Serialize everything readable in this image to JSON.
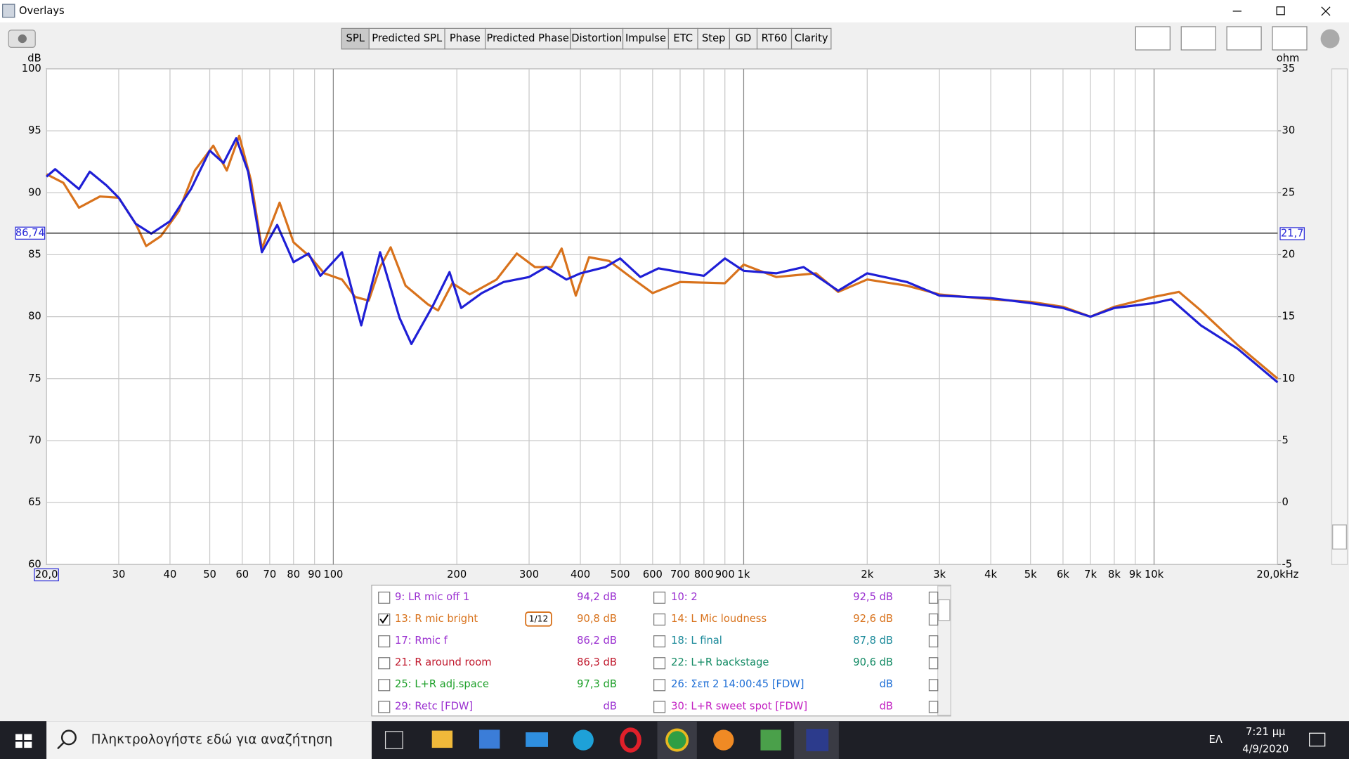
{
  "window": {
    "title": "Overlays"
  },
  "tabs": [
    "SPL",
    "Predicted SPL",
    "Phase",
    "Predicted Phase",
    "Distortion",
    "Impulse",
    "ETC",
    "Step",
    "GD",
    "RT60",
    "Clarity"
  ],
  "active_tab": 0,
  "chart_data": {
    "type": "line",
    "y_label": "dB",
    "y2_label": "ohm",
    "xlog": true,
    "grid": true,
    "xlim": [
      20,
      20000
    ],
    "xticks": [
      {
        "value": 20,
        "label": "20,0"
      },
      30,
      40,
      50,
      60,
      70,
      80,
      90,
      100,
      200,
      300,
      400,
      500,
      600,
      700,
      800,
      900,
      {
        "value": 1000,
        "label": "1k"
      },
      {
        "value": 2000,
        "label": "2k"
      },
      {
        "value": 3000,
        "label": "3k"
      },
      {
        "value": 4000,
        "label": "4k"
      },
      {
        "value": 5000,
        "label": "5k"
      },
      {
        "value": 6000,
        "label": "6k"
      },
      {
        "value": 7000,
        "label": "7k"
      },
      {
        "value": 8000,
        "label": "8k"
      },
      {
        "value": 9000,
        "label": "9k"
      },
      {
        "value": 10000,
        "label": "10k"
      },
      {
        "value": 20000,
        "label": "20,0kHz"
      }
    ],
    "ylim": [
      60,
      100
    ],
    "yticks": [
      60,
      65,
      70,
      75,
      80,
      85,
      90,
      95,
      100
    ],
    "y2lim": [
      -5,
      35
    ],
    "y2ticks": [
      -5,
      0,
      5,
      10,
      15,
      20,
      25,
      30,
      35
    ],
    "cursor": {
      "value": 86.74,
      "label": "86,74"
    },
    "cursor_y2": {
      "value": 21.7,
      "label": "21,7"
    },
    "series": [
      {
        "color": "#d8721c",
        "x": [
          20,
          22,
          24,
          27,
          30,
          33,
          35,
          38,
          42,
          46,
          51,
          55,
          59,
          63,
          67,
          74,
          80,
          88,
          95,
          105,
          113,
          122,
          130,
          138,
          150,
          170,
          180,
          195,
          215,
          250,
          280,
          310,
          340,
          360,
          390,
          420,
          470,
          540,
          600,
          700,
          900,
          1000,
          1200,
          1500,
          1700,
          2000,
          2500,
          3000,
          4000,
          5000,
          6000,
          7000,
          8000,
          10000,
          11500,
          13000,
          16000,
          20000
        ],
        "values": [
          91.5,
          90.8,
          88.8,
          89.7,
          89.6,
          87.5,
          85.7,
          86.5,
          88.5,
          91.8,
          93.8,
          91.8,
          94.6,
          91.0,
          85.5,
          89.2,
          86.0,
          84.8,
          83.5,
          83.0,
          81.6,
          81.3,
          84.0,
          85.6,
          82.5,
          81.0,
          80.5,
          82.7,
          81.8,
          83.0,
          85.1,
          84.0,
          84.0,
          85.5,
          81.7,
          84.8,
          84.5,
          83.0,
          81.9,
          82.8,
          82.7,
          84.2,
          83.2,
          83.5,
          82.0,
          83.0,
          82.5,
          81.8,
          81.4,
          81.2,
          80.8,
          80.0,
          80.8,
          81.6,
          82.0,
          80.5,
          77.7,
          75.0
        ]
      },
      {
        "color": "#1f1fd6",
        "x": [
          20,
          21,
          24,
          25.5,
          28,
          30,
          33,
          36,
          40,
          45,
          50,
          54,
          58,
          62,
          67,
          73,
          80,
          87,
          93,
          105,
          117,
          130,
          145,
          155,
          175,
          192,
          205,
          230,
          260,
          300,
          330,
          370,
          400,
          460,
          500,
          560,
          620,
          700,
          800,
          900,
          1000,
          1200,
          1400,
          1700,
          2000,
          2500,
          3000,
          4000,
          5000,
          6000,
          7000,
          8000,
          10000,
          11000,
          13000,
          16000,
          20000
        ],
        "values": [
          91.3,
          91.9,
          90.3,
          91.7,
          90.6,
          89.6,
          87.5,
          86.7,
          87.7,
          90.3,
          93.4,
          92.4,
          94.4,
          91.7,
          85.2,
          87.4,
          84.4,
          85.1,
          83.3,
          85.2,
          79.3,
          85.2,
          79.9,
          77.8,
          80.9,
          83.6,
          80.7,
          81.9,
          82.8,
          83.2,
          84.0,
          83.0,
          83.5,
          84.0,
          84.7,
          83.2,
          83.9,
          83.6,
          83.3,
          84.7,
          83.7,
          83.5,
          84.0,
          82.1,
          83.5,
          82.8,
          81.7,
          81.5,
          81.1,
          80.7,
          80.0,
          80.7,
          81.1,
          81.4,
          79.3,
          77.4,
          74.7
        ]
      }
    ]
  },
  "legend": {
    "smoothing": "1/12",
    "rows": [
      {
        "left": {
          "label": "9: LR mic off 1",
          "value": "94,2 dB",
          "color": "#9a2fd0",
          "checked": false
        },
        "right": {
          "label": "10: 2",
          "value": "92,5 dB",
          "color": "#9a2fd0",
          "checked": false
        }
      },
      {
        "left": {
          "label": "13: R mic bright",
          "value": "90,8 dB",
          "color": "#d8721c",
          "checked": true
        },
        "right": {
          "label": "14: L Mic loudness",
          "value": "92,6 dB",
          "color": "#d8721c",
          "checked": false
        }
      },
      {
        "left": {
          "label": "17: Rmic f",
          "value": "86,2 dB",
          "color": "#9a2fd0",
          "checked": false
        },
        "right": {
          "label": "18: L final",
          "value": "87,8 dB",
          "color": "#1b8a9a",
          "checked": false
        }
      },
      {
        "left": {
          "label": "21: R around room",
          "value": "86,3 dB",
          "color": "#c0182c",
          "checked": false
        },
        "right": {
          "label": "22: L+R backstage",
          "value": "90,6 dB",
          "color": "#128a64",
          "checked": false
        }
      },
      {
        "left": {
          "label": "25: L+R adj.space",
          "value": "97,3 dB",
          "color": "#1ea02a",
          "checked": false
        },
        "right": {
          "label": "26: Σεπ 2 14:00:45 [FDW]",
          "value": "dB",
          "color": "#1f6fd6",
          "checked": false
        }
      },
      {
        "left": {
          "label": "29: Retc [FDW]",
          "value": "dB",
          "color": "#9a2fd0",
          "checked": false
        },
        "right": {
          "label": "30: L+R sweet spot [FDW]",
          "value": "dB",
          "color": "#c21fc2",
          "checked": false
        }
      }
    ]
  },
  "taskbar": {
    "search": "Πληκτρολογήστε εδώ για αναζήτηση",
    "language": "ΕΛ",
    "time": "7:21 μμ",
    "date": "4/9/2020"
  }
}
